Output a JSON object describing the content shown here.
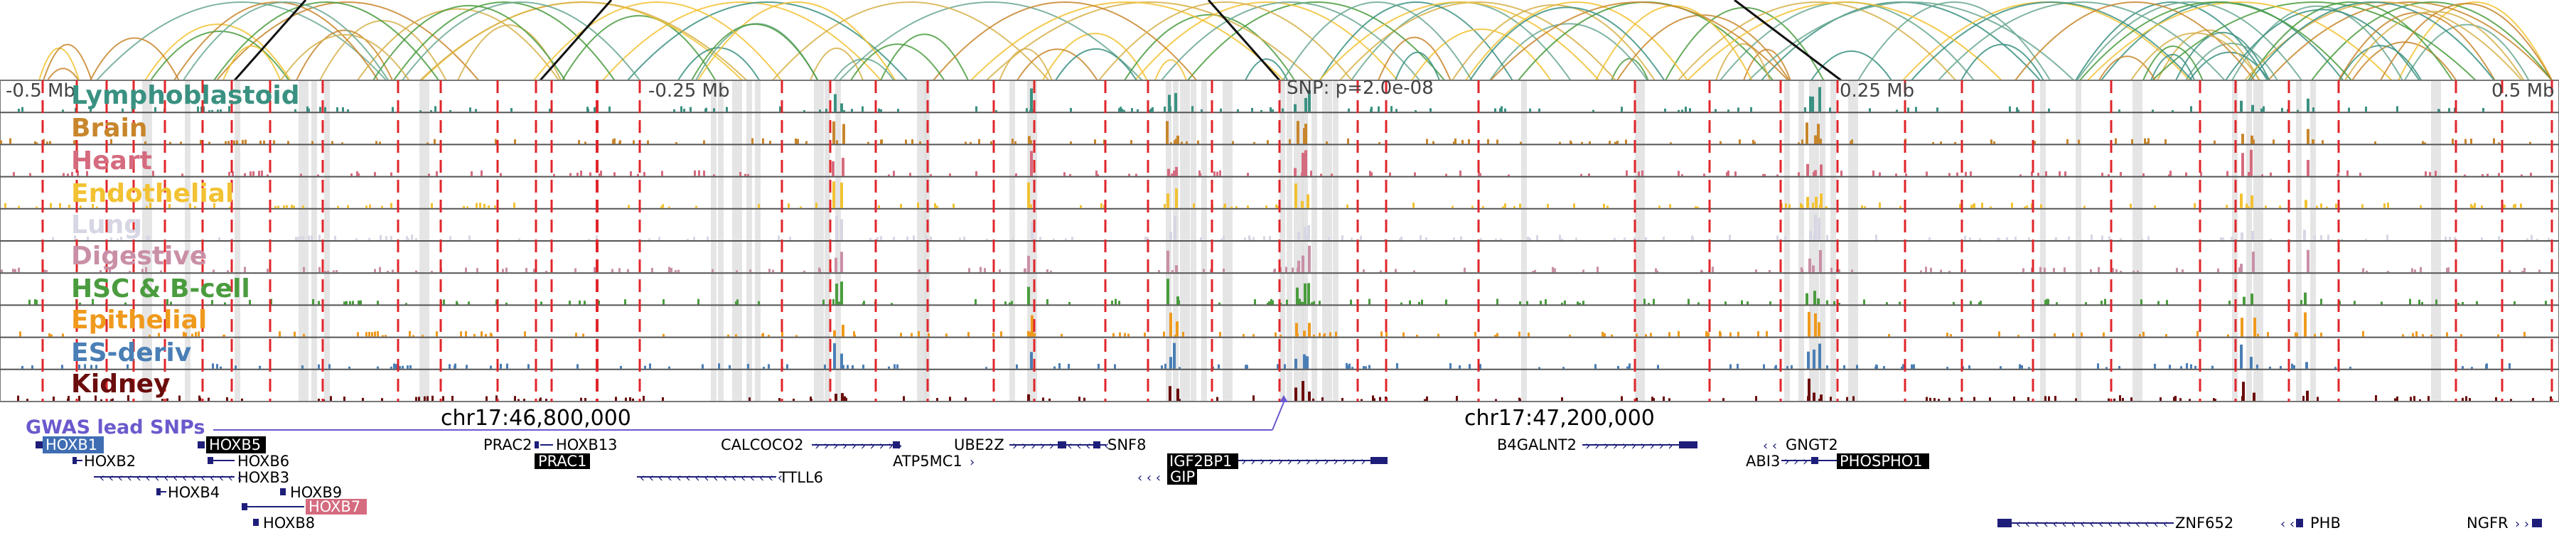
{
  "axis": {
    "ticks": [
      "-0.5 Mb",
      "-0.25 Mb",
      "0.25 Mb",
      "0.5 Mb"
    ],
    "snp_label": "SNP: p=2.0e-08"
  },
  "tracks": [
    {
      "label": "Lymphoblastoid",
      "color": "#3a9181"
    },
    {
      "label": "Brain",
      "color": "#c8862c"
    },
    {
      "label": "Heart",
      "color": "#d56b7f"
    },
    {
      "label": "Endothelial",
      "color": "#f2c232"
    },
    {
      "label": "Lung",
      "color": "#d6d6e4"
    },
    {
      "label": "Digestive",
      "color": "#c98fa6"
    },
    {
      "label": "HSC & B-cell",
      "color": "#4a9c3e"
    },
    {
      "label": "Epithelial",
      "color": "#ef9a1d"
    },
    {
      "label": "ES-deriv",
      "color": "#4a7fb5"
    },
    {
      "label": "Kidney",
      "color": "#6b0d0d"
    }
  ],
  "gwas_label": "GWAS lead SNPs",
  "coordinates": [
    "chr17:46,800,000",
    "chr17:47,200,000"
  ],
  "genes": {
    "hoxb1": "HOXB1",
    "hoxb2": "HOXB2",
    "hoxb5": "HOXB5",
    "hoxb6": "HOXB6",
    "hoxb3": "HOXB3",
    "hoxb4": "HOXB4",
    "hoxb9": "HOXB9",
    "hoxb7": "HOXB7",
    "hoxb8": "HOXB8",
    "prac2": "PRAC2",
    "hoxb13": "HOXB13",
    "prac1": "PRAC1",
    "calcoco2": "CALCOCO2",
    "ttll6": "TTLL6",
    "atp5mc1": "ATP5MC1",
    "ube2z": "UBE2Z",
    "snf8": "SNF8",
    "igf2bp1": "IGF2BP1",
    "gip": "GIP",
    "b4galnt2": "B4GALNT2",
    "gngt2": "GNGT2",
    "abi3": "ABI3",
    "phospho1": "PHOSPHO1",
    "znf652": "ZNF652",
    "phb": "PHB",
    "ngfr": "NGFR"
  },
  "colors": {
    "snp_line": "#e0252b",
    "gwas": "#6a5acd",
    "gene_body": "#1e1e7a",
    "highlight_hoxb1": "#3f6db3",
    "highlight_hoxb7": "#d56b7f",
    "arc_gold": "#f2c232",
    "arc_teal": "#3a9181",
    "arc_black": "#111111"
  }
}
